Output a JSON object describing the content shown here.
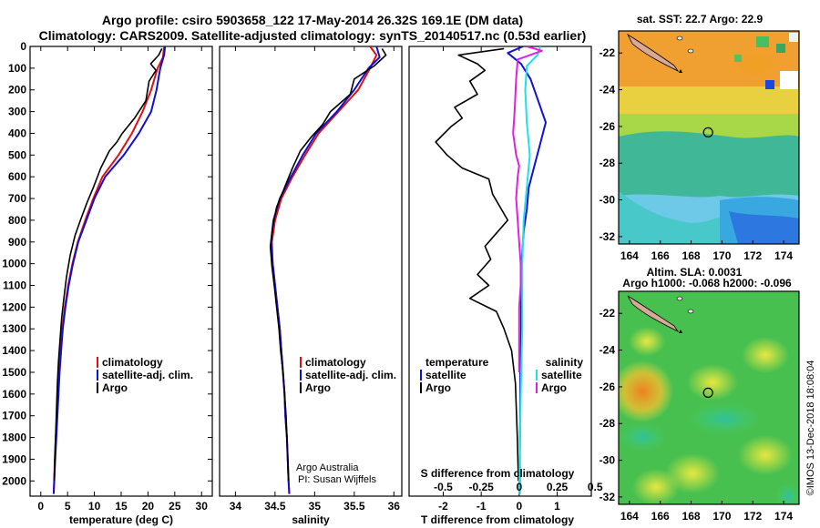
{
  "title_line1": "Argo profile: csiro 5903658_122 17-May-2014 26.32S 169.1E (DM data)",
  "title_line2": "Climatology: CARS2009. Satellite-adjusted climatology: synTS_20140517.nc (0.53d earlier)",
  "colors": {
    "climatology": "#e01010",
    "satellite": "#1010d0",
    "argo": "#000000",
    "salinity_sat": "#20e0e8",
    "salinity_argo": "#e020e0"
  },
  "chart_data": [
    {
      "type": "line",
      "name": "temperature-profile",
      "xlabel": "temperature (deg C)",
      "xlim": [
        -2,
        32
      ],
      "xticks": [
        "0",
        "5",
        "10",
        "15",
        "20",
        "25",
        "30"
      ],
      "ylim": [
        0,
        2070
      ],
      "yticks": [
        "0",
        "100",
        "200",
        "300",
        "400",
        "500",
        "600",
        "700",
        "800",
        "900",
        "1000",
        "1100",
        "1200",
        "1300",
        "1400",
        "1500",
        "1600",
        "1700",
        "1800",
        "1900",
        "2000"
      ],
      "legend": [
        "climatology",
        "satellite-adj. clim.",
        "Argo"
      ],
      "series": [
        {
          "name": "climatology",
          "color_key": "climatology",
          "points": [
            [
              23,
              0
            ],
            [
              22.8,
              50
            ],
            [
              21.8,
              100
            ],
            [
              20.6,
              200
            ],
            [
              19,
              300
            ],
            [
              17,
              400
            ],
            [
              14.5,
              500
            ],
            [
              11.5,
              600
            ],
            [
              9.8,
              700
            ],
            [
              8.3,
              800
            ],
            [
              6.9,
              900
            ],
            [
              5.9,
              1000
            ],
            [
              5.1,
              1100
            ],
            [
              4.5,
              1200
            ],
            [
              4,
              1300
            ],
            [
              3.7,
              1400
            ],
            [
              3.4,
              1500
            ],
            [
              3.2,
              1600
            ],
            [
              3,
              1700
            ],
            [
              2.8,
              1800
            ],
            [
              2.6,
              1900
            ],
            [
              2.5,
              2000
            ],
            [
              2.4,
              2060
            ]
          ]
        },
        {
          "name": "satellite-adj. clim.",
          "color_key": "satellite",
          "points": [
            [
              23.2,
              0
            ],
            [
              23,
              40
            ],
            [
              22.3,
              100
            ],
            [
              21.6,
              200
            ],
            [
              20.6,
              300
            ],
            [
              18.3,
              400
            ],
            [
              15.5,
              500
            ],
            [
              12,
              600
            ],
            [
              10,
              700
            ],
            [
              8.5,
              800
            ],
            [
              7,
              900
            ],
            [
              6,
              1000
            ],
            [
              5.2,
              1100
            ],
            [
              4.6,
              1200
            ],
            [
              4.1,
              1300
            ],
            [
              3.8,
              1400
            ],
            [
              3.5,
              1500
            ],
            [
              3.3,
              1600
            ],
            [
              3.1,
              1700
            ],
            [
              2.9,
              1800
            ],
            [
              2.7,
              1900
            ],
            [
              2.5,
              2000
            ],
            [
              2.4,
              2060
            ]
          ]
        },
        {
          "name": "Argo",
          "color_key": "argo",
          "points": [
            [
              22.6,
              10
            ],
            [
              22,
              40
            ],
            [
              20.5,
              80
            ],
            [
              21.5,
              110
            ],
            [
              20.2,
              160
            ],
            [
              19.6,
              250
            ],
            [
              17.5,
              330
            ],
            [
              15.2,
              400
            ],
            [
              14.2,
              440
            ],
            [
              12.8,
              480
            ],
            [
              11.2,
              560
            ],
            [
              9.8,
              650
            ],
            [
              8.6,
              720
            ],
            [
              7.4,
              800
            ],
            [
              6.4,
              870
            ],
            [
              5.5,
              960
            ],
            [
              4.8,
              1060
            ],
            [
              4.3,
              1160
            ],
            [
              3.9,
              1250
            ],
            [
              3.6,
              1350
            ],
            [
              3.3,
              1450
            ],
            [
              3.1,
              1550
            ],
            [
              2.9,
              1700
            ],
            [
              2.7,
              1850
            ],
            [
              2.5,
              2000
            ]
          ]
        }
      ]
    },
    {
      "type": "line",
      "name": "salinity-profile",
      "xlabel": "salinity",
      "xlim": [
        33.8,
        36.1
      ],
      "xticks": [
        "34",
        "34.5",
        "35",
        "35.5",
        "36"
      ],
      "ylim": [
        0,
        2070
      ],
      "legend": [
        "climatology",
        "satellite-adj. clim.",
        "Argo"
      ],
      "annotation": [
        "Argo Australia",
        "PI: Susan Wijffels"
      ],
      "series": [
        {
          "name": "climatology",
          "color_key": "climatology",
          "points": [
            [
              35.7,
              0
            ],
            [
              35.78,
              40
            ],
            [
              35.7,
              100
            ],
            [
              35.55,
              200
            ],
            [
              35.3,
              300
            ],
            [
              35.05,
              400
            ],
            [
              34.88,
              500
            ],
            [
              34.72,
              600
            ],
            [
              34.58,
              700
            ],
            [
              34.5,
              800
            ],
            [
              34.46,
              900
            ],
            [
              34.47,
              1000
            ],
            [
              34.5,
              1100
            ],
            [
              34.53,
              1200
            ],
            [
              34.56,
              1300
            ],
            [
              34.58,
              1400
            ],
            [
              34.6,
              1500
            ],
            [
              34.62,
              1600
            ],
            [
              34.63,
              1700
            ],
            [
              34.65,
              1800
            ],
            [
              34.66,
              1900
            ],
            [
              34.67,
              2000
            ],
            [
              34.68,
              2060
            ]
          ]
        },
        {
          "name": "satellite-adj. clim.",
          "color_key": "satellite",
          "points": [
            [
              35.78,
              0
            ],
            [
              35.82,
              50
            ],
            [
              35.68,
              100
            ],
            [
              35.5,
              200
            ],
            [
              35.28,
              300
            ],
            [
              35.02,
              400
            ],
            [
              34.85,
              500
            ],
            [
              34.7,
              600
            ],
            [
              34.56,
              700
            ],
            [
              34.48,
              800
            ],
            [
              34.45,
              900
            ],
            [
              34.47,
              1000
            ],
            [
              34.5,
              1100
            ],
            [
              34.53,
              1200
            ],
            [
              34.56,
              1300
            ],
            [
              34.58,
              1400
            ],
            [
              34.6,
              1500
            ],
            [
              34.62,
              1600
            ],
            [
              34.63,
              1700
            ],
            [
              34.65,
              1800
            ],
            [
              34.66,
              1900
            ],
            [
              34.67,
              2000
            ],
            [
              34.68,
              2060
            ]
          ]
        },
        {
          "name": "Argo",
          "color_key": "argo",
          "points": [
            [
              35.85,
              10
            ],
            [
              35.9,
              40
            ],
            [
              35.75,
              90
            ],
            [
              35.5,
              150
            ],
            [
              35.45,
              220
            ],
            [
              35.2,
              300
            ],
            [
              35.1,
              360
            ],
            [
              34.95,
              420
            ],
            [
              34.82,
              480
            ],
            [
              34.72,
              560
            ],
            [
              34.62,
              650
            ],
            [
              34.52,
              740
            ],
            [
              34.47,
              830
            ],
            [
              34.44,
              920
            ],
            [
              34.46,
              1010
            ],
            [
              34.49,
              1100
            ],
            [
              34.52,
              1200
            ],
            [
              34.55,
              1300
            ],
            [
              34.57,
              1400
            ],
            [
              34.6,
              1500
            ],
            [
              34.62,
              1600
            ],
            [
              34.64,
              1700
            ],
            [
              34.65,
              1800
            ],
            [
              34.66,
              1900
            ],
            [
              34.67,
              2000
            ]
          ]
        }
      ]
    },
    {
      "type": "line",
      "name": "difference-profile",
      "xlabel": "T difference from climatology",
      "xlim": [
        -2.9,
        1.9
      ],
      "xticks": [
        "-2",
        "-1",
        "0",
        "1"
      ],
      "ylim": [
        0,
        2070
      ],
      "secondary_axis": {
        "label": "S difference from climatology",
        "xlim": [
          -0.725,
          0.475
        ],
        "ticks": [
          "-0.5",
          "-0.25",
          "0",
          "0.25",
          "0.5"
        ]
      },
      "legend": {
        "temperature_title": "temperature",
        "salinity_title": "salinity",
        "temperature_items": [
          "satellite",
          "Argo"
        ],
        "salinity_items": [
          "satellite",
          "Argo"
        ]
      },
      "series": [
        {
          "name": "T satellite",
          "color_key": "satellite",
          "axis": "T",
          "points": [
            [
              0.1,
              0
            ],
            [
              -0.3,
              30
            ],
            [
              0.05,
              80
            ],
            [
              0.3,
              150
            ],
            [
              0.5,
              250
            ],
            [
              0.7,
              350
            ],
            [
              0.55,
              450
            ],
            [
              0.4,
              550
            ],
            [
              0.25,
              650
            ],
            [
              0.2,
              750
            ],
            [
              0.12,
              850
            ],
            [
              0.08,
              950
            ],
            [
              0.05,
              1100
            ],
            [
              0.05,
              1300
            ],
            [
              0.03,
              1500
            ],
            [
              0.02,
              1800
            ],
            [
              0.01,
              2060
            ]
          ]
        },
        {
          "name": "T Argo",
          "color_key": "argo",
          "axis": "T",
          "points": [
            [
              -0.4,
              10
            ],
            [
              -1.6,
              40
            ],
            [
              -1.1,
              80
            ],
            [
              -0.9,
              110
            ],
            [
              -1.3,
              160
            ],
            [
              -1.1,
              220
            ],
            [
              -1.7,
              280
            ],
            [
              -1.5,
              330
            ],
            [
              -1.8,
              370
            ],
            [
              -2.2,
              440
            ],
            [
              -1.9,
              500
            ],
            [
              -1.5,
              560
            ],
            [
              -0.8,
              610
            ],
            [
              -0.7,
              680
            ],
            [
              -0.5,
              740
            ],
            [
              -0.3,
              800
            ],
            [
              -0.6,
              860
            ],
            [
              -0.9,
              920
            ],
            [
              -0.75,
              980
            ],
            [
              -1.1,
              1050
            ],
            [
              -0.8,
              1100
            ],
            [
              -1.3,
              1160
            ],
            [
              -0.6,
              1220
            ],
            [
              -0.4,
              1300
            ],
            [
              -0.2,
              1400
            ],
            [
              -0.1,
              1550
            ],
            [
              -0.05,
              1800
            ],
            [
              -0.02,
              2000
            ]
          ]
        },
        {
          "name": "S satellite",
          "color_key": "salinity_sat",
          "axis": "S",
          "points": [
            [
              0.14,
              0
            ],
            [
              0.12,
              40
            ],
            [
              0.05,
              90
            ],
            [
              0.04,
              200
            ],
            [
              0.05,
              350
            ],
            [
              0.07,
              500
            ],
            [
              0.05,
              650
            ],
            [
              0.03,
              800
            ],
            [
              0.02,
              1000
            ],
            [
              0.02,
              1300
            ],
            [
              0.01,
              1600
            ],
            [
              0.0,
              2060
            ]
          ]
        },
        {
          "name": "S Argo",
          "color_key": "salinity_argo",
          "axis": "S",
          "points": [
            [
              0.05,
              0
            ],
            [
              0.15,
              20
            ],
            [
              -0.01,
              60
            ],
            [
              -0.02,
              150
            ],
            [
              -0.03,
              300
            ],
            [
              -0.04,
              400
            ],
            [
              -0.02,
              500
            ],
            [
              0.0,
              550
            ],
            [
              -0.01,
              600
            ],
            [
              -0.02,
              700
            ],
            [
              -0.01,
              800
            ],
            [
              0.0,
              900
            ],
            [
              0.01,
              1000
            ],
            [
              0.01,
              1100
            ],
            [
              0.0,
              1200
            ],
            [
              0.0,
              1400
            ],
            [
              0.0,
              1500
            ]
          ]
        }
      ]
    },
    {
      "type": "heatmap",
      "name": "sst-map",
      "title": "sat. SST: 22.7 Argo: 22.9",
      "xlim": [
        163.3,
        175
      ],
      "ylim": [
        -32.4,
        -20.8
      ],
      "xticks": [
        "164",
        "166",
        "168",
        "170",
        "172",
        "174"
      ],
      "yticks": [
        "-22",
        "-24",
        "-26",
        "-28",
        "-30",
        "-32"
      ],
      "marker": [
        169.1,
        -26.32
      ]
    },
    {
      "type": "heatmap",
      "name": "sla-map",
      "title": "Altim. SLA: 0.0031",
      "subtitle": "Argo h1000: -0.068 h2000: -0.096",
      "xlim": [
        163.3,
        175
      ],
      "ylim": [
        -32.4,
        -20.8
      ],
      "xticks": [
        "164",
        "166",
        "168",
        "170",
        "172",
        "174"
      ],
      "yticks": [
        "-22",
        "-24",
        "-26",
        "-28",
        "-30",
        "-32"
      ],
      "marker": [
        169.1,
        -26.32
      ]
    }
  ],
  "footer_stamp": "©IMOS 13-Dec-2018 18:08:04"
}
